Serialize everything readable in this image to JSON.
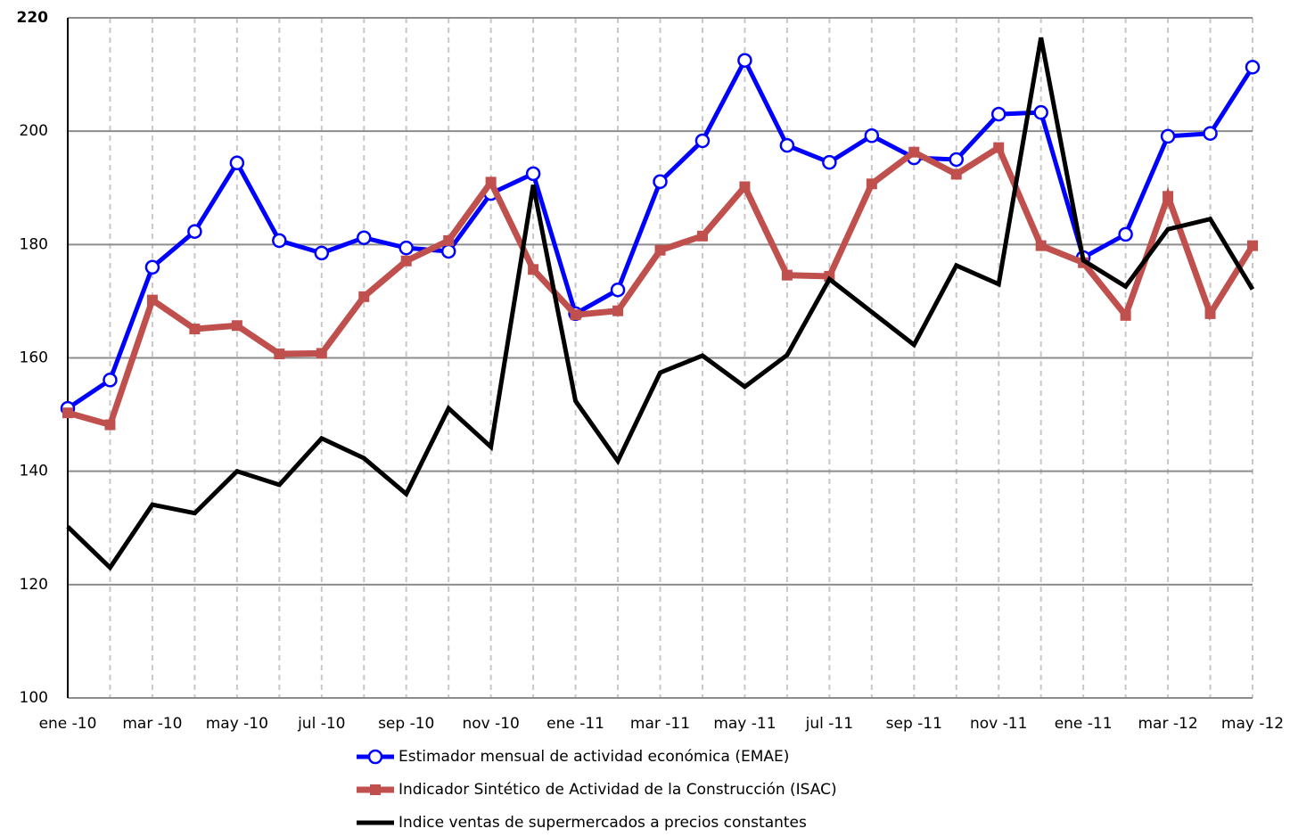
{
  "chart_data": {
    "type": "line",
    "categories": [
      "ene -10",
      null,
      "mar -10",
      null,
      "may -10",
      null,
      "jul -10",
      null,
      "sep -10",
      null,
      "nov -10",
      null,
      "ene -11",
      null,
      "mar -11",
      null,
      "may -11",
      null,
      "jul -11",
      null,
      "sep -11",
      null,
      "nov -11",
      null,
      "ene -11",
      null,
      "mar -12",
      null,
      "may -12"
    ],
    "series": [
      {
        "name": "Estimador mensual de actividad económica (EMAE)",
        "color": "#0000ff",
        "marker": "circle",
        "values": [
          151.1,
          156.1,
          176.0,
          182.3,
          194.4,
          180.7,
          178.5,
          181.2,
          179.4,
          178.8,
          189.0,
          192.5,
          167.8,
          172.0,
          191.1,
          198.3,
          212.5,
          197.5,
          194.5,
          199.2,
          195.3,
          195.0,
          203.0,
          203.3,
          177.7,
          181.8,
          199.1,
          199.6,
          211.3
        ]
      },
      {
        "name": "Indicador Sintético de Actividad de la Construcción (ISAC)",
        "color": "#c0504d",
        "marker": "square",
        "values": [
          150.3,
          148.2,
          170.2,
          165.1,
          165.7,
          160.7,
          160.8,
          170.8,
          177.1,
          180.7,
          191.0,
          175.6,
          167.6,
          168.3,
          179.0,
          181.5,
          190.2,
          174.6,
          174.4,
          190.7,
          196.3,
          192.4,
          197.1,
          179.8,
          176.8,
          167.5,
          188.5,
          167.8,
          179.8
        ]
      },
      {
        "name": "Indice  ventas de supermercados a precios constantes",
        "color": "#000000",
        "values": [
          130.2,
          123.0,
          134.1,
          132.6,
          140.0,
          137.6,
          145.8,
          142.3,
          136.0,
          151.1,
          144.3,
          190.5,
          152.4,
          141.8,
          157.4,
          160.4,
          154.9,
          160.5,
          173.9,
          168.1,
          162.3,
          176.3,
          173.0,
          216.5,
          177.2,
          172.6,
          182.7,
          184.5,
          172.1
        ]
      }
    ],
    "ylim": [
      100,
      220
    ],
    "yticks": [
      100,
      120,
      140,
      160,
      180,
      200,
      220
    ],
    "grid": true
  }
}
